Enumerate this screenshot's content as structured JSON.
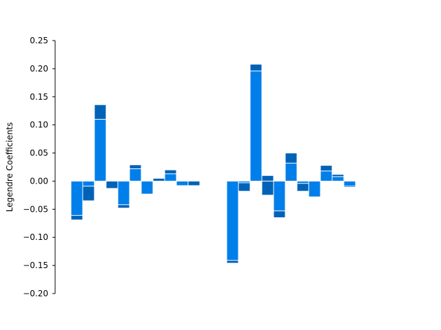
{
  "chart_data": {
    "type": "bar",
    "ylabel": "Legendre Coefficients",
    "xlabel": "",
    "ylim": [
      -0.2,
      0.25
    ],
    "yticks": [
      -0.2,
      -0.15,
      -0.1,
      -0.05,
      0.0,
      0.05,
      0.1,
      0.15,
      0.2,
      0.25
    ],
    "ytick_labels": [
      "−0.20",
      "−0.15",
      "−0.10",
      "−0.05",
      "0.00",
      "0.05",
      "0.10",
      "0.15",
      "0.20",
      "0.25"
    ],
    "grid": false,
    "x_axis_visible": false,
    "groups": [
      {
        "bars": [
          {
            "inner": -0.061,
            "total": -0.069
          },
          {
            "inner": -0.009,
            "total": -0.035
          },
          {
            "inner": 0.11,
            "total": 0.136
          },
          {
            "inner": 0.0,
            "total": -0.013
          },
          {
            "inner": -0.042,
            "total": -0.048
          },
          {
            "inner": 0.022,
            "total": 0.029
          },
          {
            "inner": -0.023,
            "total": -0.023
          },
          {
            "inner": 0.0,
            "total": 0.005
          },
          {
            "inner": 0.013,
            "total": 0.02
          },
          {
            "inner": -0.008,
            "total": -0.008
          },
          {
            "inner": 0.0,
            "total": -0.008
          },
          {
            "inner": 0.0,
            "total": 0.001
          }
        ]
      },
      {
        "bars": [
          {
            "inner": -0.141,
            "total": -0.146
          },
          {
            "inner": -0.003,
            "total": -0.018
          },
          {
            "inner": 0.196,
            "total": 0.208
          },
          {
            "inner": 0.0,
            "total": 0.01,
            "extra_negative": -0.025
          },
          {
            "inner": -0.053,
            "total": -0.065
          },
          {
            "inner": 0.032,
            "total": 0.05
          },
          {
            "inner": -0.004,
            "total": -0.018
          },
          {
            "inner": -0.028,
            "total": -0.028
          },
          {
            "inner": 0.018,
            "total": 0.028
          },
          {
            "inner": 0.008,
            "total": 0.012
          },
          {
            "inner": -0.009,
            "total": -0.011
          }
        ]
      }
    ],
    "colors": {
      "primary": "#007fea",
      "secondary": "#0062b7",
      "separator": "#ffffff"
    }
  }
}
